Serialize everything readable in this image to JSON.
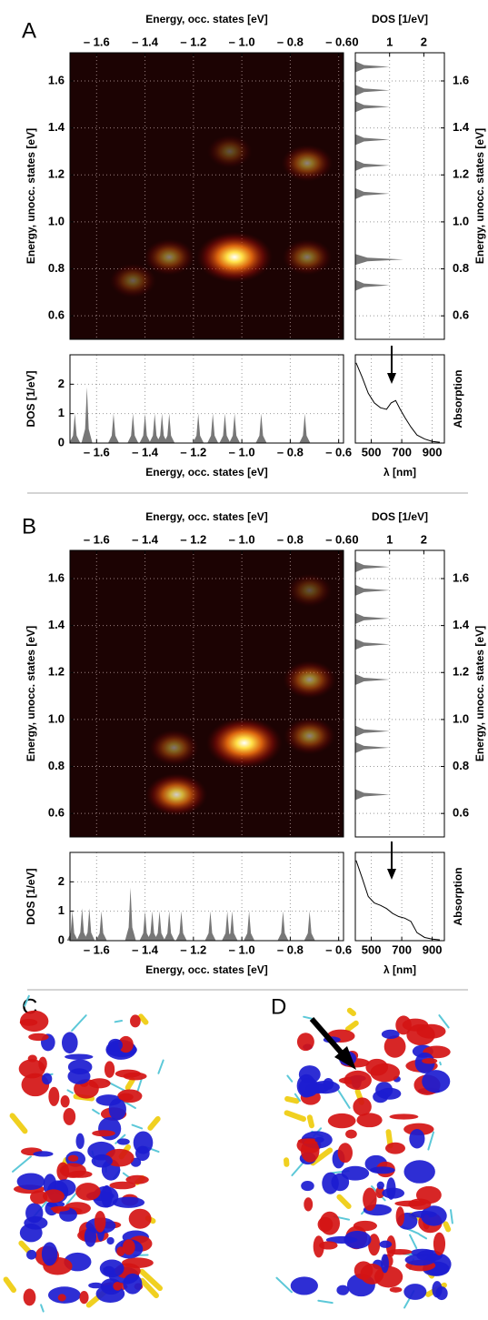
{
  "panel_labels": [
    "A",
    "B",
    "C",
    "D"
  ],
  "chart_data": [
    {
      "type": "heatmap",
      "x_label": "Energy, occ. states [eV]",
      "y_label": "Energy, unocc. states [eV]",
      "xlim": [
        -1.71,
        -0.58
      ],
      "ylim": [
        0.5,
        1.72
      ],
      "xticks": [
        {
          "value": -1.6,
          "label": "– 1.6"
        },
        {
          "value": -1.4,
          "label": "– 1.4"
        },
        {
          "value": -1.2,
          "label": "– 1.2"
        },
        {
          "value": -1.0,
          "label": "– 1.0"
        },
        {
          "value": -0.8,
          "label": "– 0.8"
        },
        {
          "value": -0.6,
          "label": "– 0.6"
        }
      ],
      "yticks": [
        0.6,
        0.8,
        {
          "value": 1.0,
          "label": "1.0"
        },
        1.2,
        1.4,
        1.6
      ],
      "grid": true,
      "x": [
        -1.03,
        -1.3,
        -0.73,
        -0.73,
        -1.45,
        -1.05
      ],
      "y": [
        0.85,
        0.85,
        0.85,
        1.25,
        0.75,
        1.3
      ],
      "values": [
        1.0,
        0.22,
        0.2,
        0.25,
        0.1,
        0.05
      ]
    },
    {
      "type": "area",
      "orientation": "horizontal",
      "x_label": "DOS [1/eV]",
      "y_label": "Energy, unocc. states [eV]",
      "color": "#777777",
      "xlim": [
        0,
        2.6
      ],
      "xticks": [
        0,
        1,
        2
      ],
      "ylim": [
        0.5,
        1.72
      ],
      "yticks": [
        0.6,
        0.8,
        {
          "value": 1.0,
          "label": "1.0"
        },
        1.2,
        1.4,
        1.6
      ],
      "grid": true,
      "y": [
        1.66,
        1.56,
        1.49,
        1.35,
        1.24,
        1.12,
        0.84,
        0.73
      ],
      "values": [
        1.0,
        1.0,
        1.0,
        1.0,
        1.0,
        1.0,
        1.4,
        1.0
      ]
    },
    {
      "type": "area",
      "orientation": "vertical",
      "x_label": "Energy, occ. states [eV]",
      "y_label": "DOS [1/eV]",
      "color": "#777777",
      "xlim": [
        -1.71,
        -0.58
      ],
      "xticks": [
        {
          "value": -1.6,
          "label": "– 1.6"
        },
        {
          "value": -1.4,
          "label": "– 1.4"
        },
        {
          "value": -1.2,
          "label": "– 1.2"
        },
        {
          "value": -1.0,
          "label": "– 1.0"
        },
        {
          "value": -0.8,
          "label": "– 0.8"
        },
        {
          "value": -0.6,
          "label": "– 0.6"
        }
      ],
      "ylim": [
        0,
        3
      ],
      "yticks": [
        0,
        1,
        2
      ],
      "grid": true,
      "x": [
        -1.69,
        -1.64,
        -1.53,
        -1.45,
        -1.4,
        -1.36,
        -1.33,
        -1.3,
        -1.18,
        -1.12,
        -1.07,
        -1.03,
        -0.92,
        -0.74
      ],
      "values": [
        1.0,
        1.9,
        1.0,
        1.0,
        1.0,
        1.0,
        1.0,
        1.0,
        1.0,
        1.0,
        1.0,
        1.0,
        1.0,
        1.0
      ]
    },
    {
      "type": "line",
      "x_label": "λ [nm]",
      "y_label": "Absorption",
      "color": "#000000",
      "xlim": [
        395,
        980
      ],
      "xticks": [
        500,
        700,
        900
      ],
      "ylim": [
        0,
        1.1
      ],
      "grid": true,
      "x": [
        400,
        440,
        480,
        520,
        560,
        600,
        630,
        660,
        690,
        720,
        760,
        800,
        850,
        900,
        950
      ],
      "values": [
        1.0,
        0.82,
        0.62,
        0.5,
        0.44,
        0.42,
        0.5,
        0.53,
        0.42,
        0.32,
        0.2,
        0.1,
        0.05,
        0.02,
        0.01
      ]
    },
    {
      "type": "heatmap",
      "x_label": "Energy, occ. states [eV]",
      "y_label": "Energy, unocc. states [eV]",
      "xlim": [
        -1.71,
        -0.58
      ],
      "ylim": [
        0.5,
        1.72
      ],
      "xticks": [
        {
          "value": -1.6,
          "label": "– 1.6"
        },
        {
          "value": -1.4,
          "label": "– 1.4"
        },
        {
          "value": -1.2,
          "label": "– 1.2"
        },
        {
          "value": -1.0,
          "label": "– 1.0"
        },
        {
          "value": -0.8,
          "label": "– 0.8"
        },
        {
          "value": -0.6,
          "label": "– 0.6"
        }
      ],
      "yticks": [
        0.6,
        0.8,
        {
          "value": 1.0,
          "label": "1.0"
        },
        1.2,
        1.4,
        1.6
      ],
      "grid": true,
      "x": [
        -0.99,
        -1.27,
        -1.28,
        -0.72,
        -0.72,
        -0.72
      ],
      "y": [
        0.9,
        0.68,
        0.88,
        1.17,
        0.93,
        1.55
      ],
      "values": [
        1.0,
        0.55,
        0.2,
        0.3,
        0.25,
        0.05
      ]
    },
    {
      "type": "area",
      "orientation": "horizontal",
      "x_label": "DOS [1/eV]",
      "y_label": "Energy, unocc. states [eV]",
      "color": "#777777",
      "xlim": [
        0,
        2.6
      ],
      "xticks": [
        0,
        1,
        2
      ],
      "ylim": [
        0.5,
        1.72
      ],
      "yticks": [
        0.6,
        0.8,
        {
          "value": 1.0,
          "label": "1.0"
        },
        1.2,
        1.4,
        1.6
      ],
      "grid": true,
      "y": [
        1.65,
        1.55,
        1.43,
        1.32,
        1.17,
        0.95,
        0.88,
        0.68
      ],
      "values": [
        1.0,
        1.0,
        1.0,
        1.0,
        1.0,
        1.0,
        1.0,
        1.0
      ]
    },
    {
      "type": "area",
      "orientation": "vertical",
      "x_label": "Energy, occ. states [eV]",
      "y_label": "DOS [1/eV]",
      "color": "#777777",
      "xlim": [
        -1.71,
        -0.58
      ],
      "xticks": [
        {
          "value": -1.6,
          "label": "– 1.6"
        },
        {
          "value": -1.4,
          "label": "– 1.4"
        },
        {
          "value": -1.2,
          "label": "– 1.2"
        },
        {
          "value": -1.0,
          "label": "– 1.0"
        },
        {
          "value": -0.8,
          "label": "– 0.8"
        },
        {
          "value": -0.6,
          "label": "– 0.6"
        }
      ],
      "ylim": [
        0,
        3
      ],
      "yticks": [
        0,
        1,
        2
      ],
      "grid": true,
      "x": [
        -1.7,
        -1.66,
        -1.63,
        -1.58,
        -1.46,
        -1.4,
        -1.37,
        -1.34,
        -1.3,
        -1.25,
        -1.13,
        -1.06,
        -1.04,
        -0.97,
        -0.83,
        -0.72
      ],
      "values": [
        1.0,
        1.1,
        1.1,
        1.0,
        1.8,
        1.0,
        1.0,
        1.0,
        1.0,
        1.0,
        1.0,
        1.0,
        1.0,
        1.0,
        1.0,
        1.0
      ]
    },
    {
      "type": "line",
      "x_label": "λ [nm]",
      "y_label": "Absorption",
      "color": "#000000",
      "xlim": [
        395,
        980
      ],
      "xticks": [
        500,
        700,
        900
      ],
      "ylim": [
        0,
        1.1
      ],
      "grid": true,
      "x": [
        400,
        440,
        480,
        520,
        560,
        600,
        640,
        680,
        720,
        760,
        800,
        850,
        900,
        950
      ],
      "values": [
        1.0,
        0.78,
        0.55,
        0.47,
        0.44,
        0.4,
        0.34,
        0.3,
        0.28,
        0.24,
        0.1,
        0.04,
        0.02,
        0.01
      ]
    }
  ]
}
